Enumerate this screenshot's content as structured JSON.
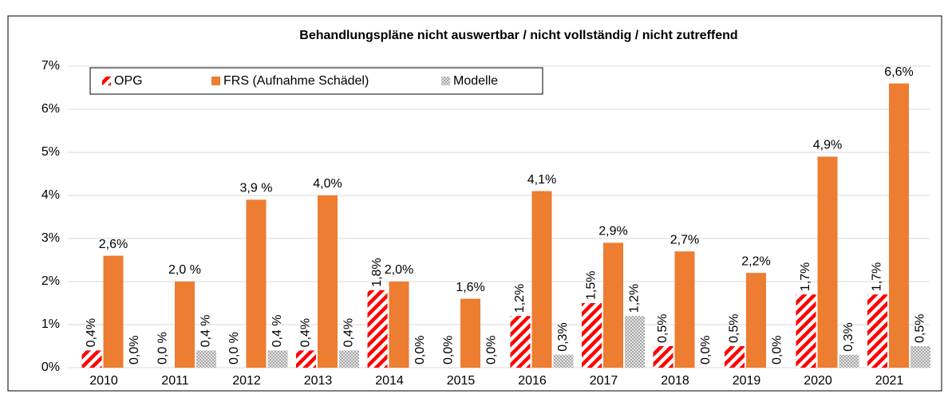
{
  "chart_data": {
    "type": "bar",
    "title": "Behandlungspläne  nicht auswertbar  / nicht vollständig  / nicht zutreffend",
    "categories": [
      "2010",
      "2011",
      "2012",
      "2013",
      "2014",
      "2015",
      "2016",
      "2017",
      "2018",
      "2019",
      "2020",
      "2021"
    ],
    "series": [
      {
        "name": "OPG",
        "color": "#ff0000",
        "values": [
          0.4,
          0.0,
          0.0,
          0.4,
          1.8,
          0.0,
          1.2,
          1.5,
          0.5,
          0.5,
          1.7,
          1.7
        ],
        "value_labels": [
          "0,4%",
          "0,0 %",
          "0,0 %",
          "0,4%",
          "1,8%",
          "0,0%",
          "1,2%",
          "1,5%",
          "0,5%",
          "0,5%",
          "1,7%",
          "1,7%"
        ]
      },
      {
        "name": "FRS (Aufnahme Schädel)",
        "color": "#ed7d31",
        "values": [
          2.6,
          2.0,
          3.9,
          4.0,
          2.0,
          1.6,
          4.1,
          2.9,
          2.7,
          2.2,
          4.9,
          6.6
        ],
        "value_labels": [
          "2,6%",
          "2,0 %",
          "3,9 %",
          "4,0%",
          "2,0%",
          "1,6%",
          "4,1%",
          "2,9%",
          "2,7%",
          "2,2%",
          "4,9%",
          "6,6%"
        ]
      },
      {
        "name": "Modelle",
        "color": "#bfbfbf",
        "values": [
          0.0,
          0.4,
          0.4,
          0.4,
          0.0,
          0.0,
          0.3,
          1.2,
          0.0,
          0.0,
          0.3,
          0.5
        ],
        "value_labels": [
          "0,0%",
          "0,4 %",
          "0,4 %",
          "0,4%",
          "0,0%",
          "0,0%",
          "0,3%",
          "1,2%",
          "0,0%",
          "0,0%",
          "0,3%",
          "0,5%"
        ]
      }
    ],
    "ylim": [
      0,
      7
    ],
    "yticks": [
      {
        "value": 0,
        "label": "0%"
      },
      {
        "value": 1,
        "label": "1%"
      },
      {
        "value": 2,
        "label": "2%"
      },
      {
        "value": 3,
        "label": "3%"
      },
      {
        "value": 4,
        "label": "4%"
      },
      {
        "value": 5,
        "label": "5%"
      },
      {
        "value": 6,
        "label": "6%"
      },
      {
        "value": 7,
        "label": "7%"
      }
    ],
    "grid": true,
    "legend": "top-left"
  }
}
